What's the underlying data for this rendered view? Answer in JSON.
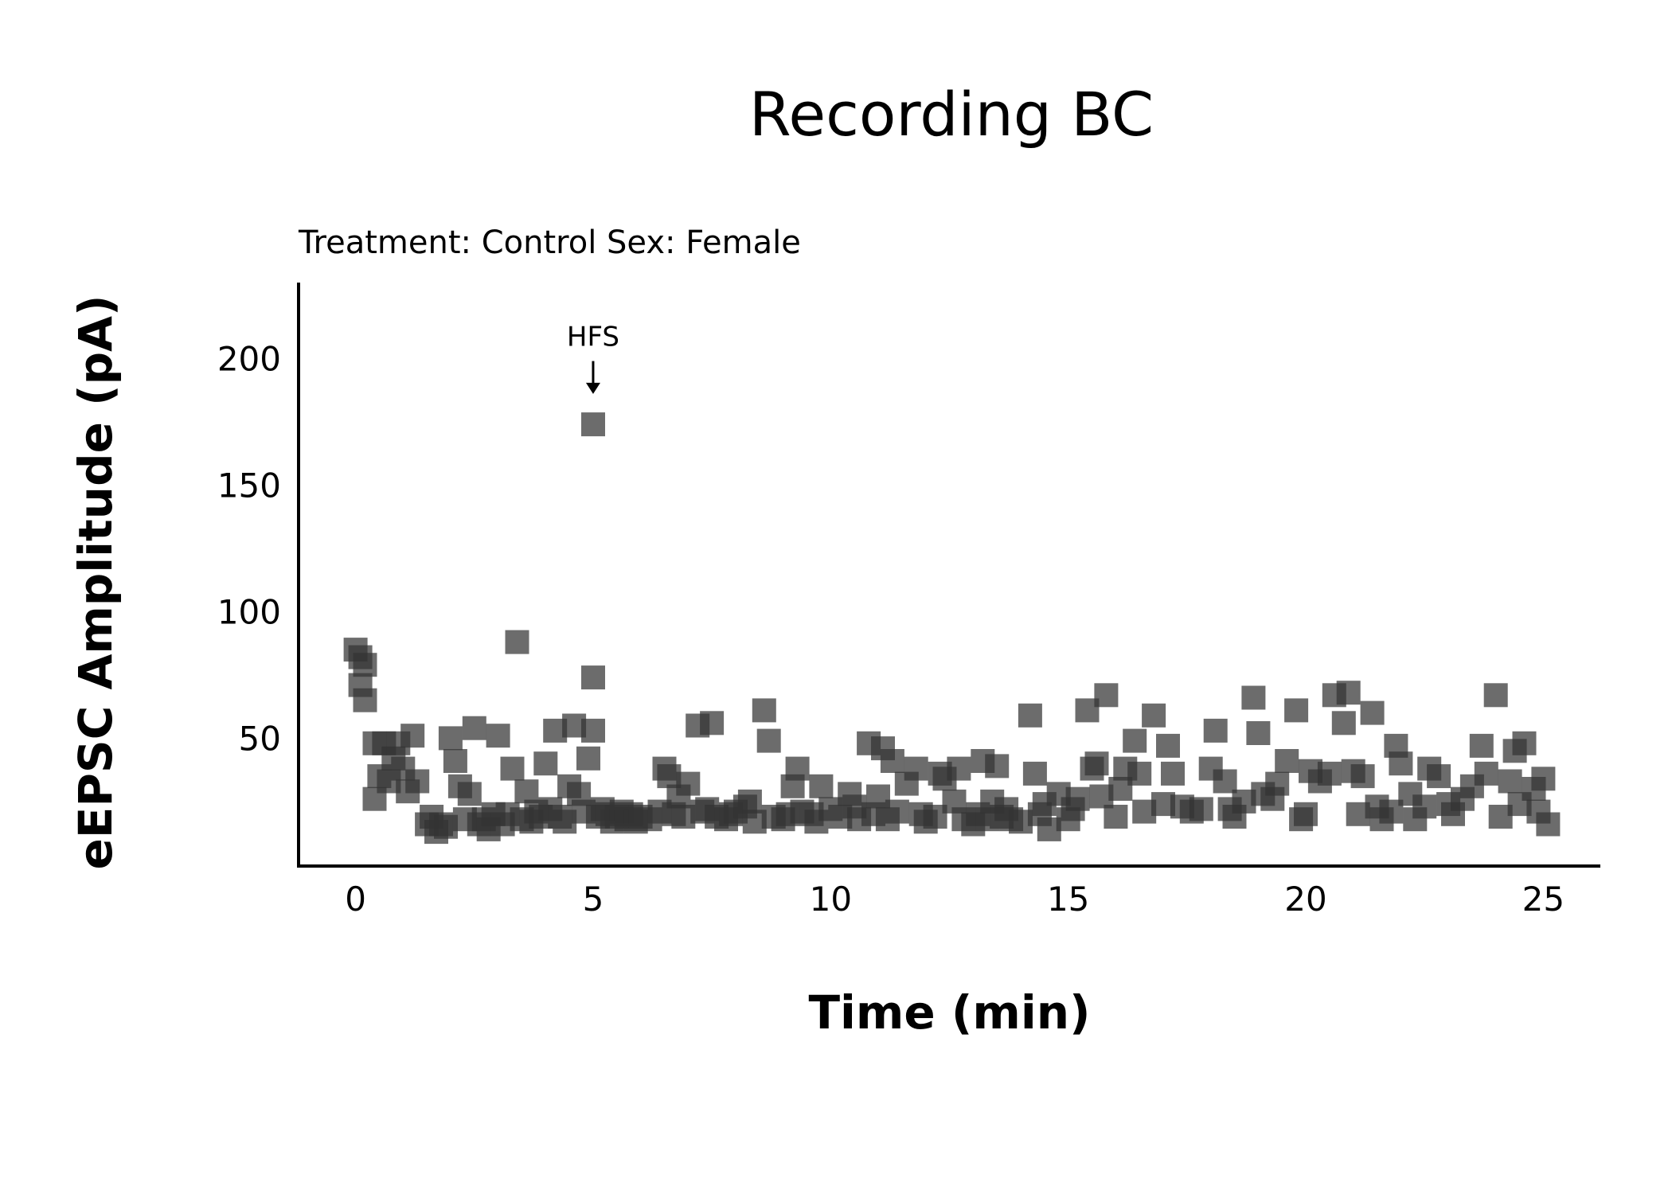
{
  "chart_data": {
    "type": "scatter",
    "title": "Recording BC",
    "subtitle": "Treatment: Control  Sex: Female",
    "xlabel": "Time (min)",
    "ylabel": "eEPSC Amplitude (pA)",
    "xlim": [
      -1.2,
      26.2
    ],
    "ylim": [
      -0.5,
      230
    ],
    "xticks": [
      0,
      5,
      10,
      15,
      20,
      25
    ],
    "yticks": [
      50,
      100,
      150,
      200
    ],
    "grid": false,
    "point_color": "#333333",
    "marker": "square",
    "annotation": {
      "text": "HFS",
      "x": 5.0,
      "y_text": 205,
      "y_arrow_start": 199,
      "y_arrow_end": 186
    },
    "points": [
      [
        0.0,
        85
      ],
      [
        0.1,
        82
      ],
      [
        0.1,
        71
      ],
      [
        0.2,
        79
      ],
      [
        0.2,
        65
      ],
      [
        0.4,
        48
      ],
      [
        0.4,
        26
      ],
      [
        0.5,
        35
      ],
      [
        0.6,
        48
      ],
      [
        0.7,
        33
      ],
      [
        0.8,
        42
      ],
      [
        0.9,
        48
      ],
      [
        1.0,
        38
      ],
      [
        1.1,
        29
      ],
      [
        1.2,
        51
      ],
      [
        1.3,
        33
      ],
      [
        1.5,
        16
      ],
      [
        1.6,
        19
      ],
      [
        1.7,
        13
      ],
      [
        1.8,
        16
      ],
      [
        1.9,
        15
      ],
      [
        2.0,
        50
      ],
      [
        2.1,
        41
      ],
      [
        2.2,
        31
      ],
      [
        2.3,
        18
      ],
      [
        2.4,
        28
      ],
      [
        2.5,
        54
      ],
      [
        2.6,
        16
      ],
      [
        2.7,
        18
      ],
      [
        2.8,
        14
      ],
      [
        2.9,
        20
      ],
      [
        3.0,
        51
      ],
      [
        3.1,
        16
      ],
      [
        3.2,
        20
      ],
      [
        3.3,
        38
      ],
      [
        3.4,
        88
      ],
      [
        3.5,
        18
      ],
      [
        3.6,
        29
      ],
      [
        3.7,
        17
      ],
      [
        3.8,
        21
      ],
      [
        3.9,
        19
      ],
      [
        4.0,
        40
      ],
      [
        4.1,
        22
      ],
      [
        4.2,
        53
      ],
      [
        4.3,
        19
      ],
      [
        4.4,
        17
      ],
      [
        4.5,
        31
      ],
      [
        4.6,
        55
      ],
      [
        4.7,
        28
      ],
      [
        4.8,
        21
      ],
      [
        4.9,
        42
      ],
      [
        5.0,
        53
      ],
      [
        5.0,
        74
      ],
      [
        5.0,
        174
      ],
      [
        5.1,
        19
      ],
      [
        5.2,
        22
      ],
      [
        5.3,
        20
      ],
      [
        5.4,
        17
      ],
      [
        5.5,
        19
      ],
      [
        5.6,
        21
      ],
      [
        5.7,
        18
      ],
      [
        5.8,
        20
      ],
      [
        5.9,
        17
      ],
      [
        6.0,
        19
      ],
      [
        6.2,
        18
      ],
      [
        6.4,
        21
      ],
      [
        6.5,
        38
      ],
      [
        6.6,
        35
      ],
      [
        6.7,
        20
      ],
      [
        6.8,
        27
      ],
      [
        6.9,
        19
      ],
      [
        7.0,
        32
      ],
      [
        7.2,
        55
      ],
      [
        7.3,
        21
      ],
      [
        7.4,
        22
      ],
      [
        7.5,
        56
      ],
      [
        7.6,
        19
      ],
      [
        7.8,
        18
      ],
      [
        7.9,
        20
      ],
      [
        8.0,
        21
      ],
      [
        8.2,
        23
      ],
      [
        8.3,
        25
      ],
      [
        8.4,
        17
      ],
      [
        8.6,
        61
      ],
      [
        8.7,
        49
      ],
      [
        8.8,
        19
      ],
      [
        9.0,
        18
      ],
      [
        9.1,
        20
      ],
      [
        9.2,
        31
      ],
      [
        9.3,
        38
      ],
      [
        9.4,
        21
      ],
      [
        9.6,
        20
      ],
      [
        9.7,
        17
      ],
      [
        9.8,
        31
      ],
      [
        10.0,
        22
      ],
      [
        10.2,
        19
      ],
      [
        10.4,
        28
      ],
      [
        10.5,
        23
      ],
      [
        10.6,
        18
      ],
      [
        10.8,
        48
      ],
      [
        10.9,
        20
      ],
      [
        11.0,
        27
      ],
      [
        11.1,
        46
      ],
      [
        11.2,
        18
      ],
      [
        11.3,
        41
      ],
      [
        11.4,
        21
      ],
      [
        11.6,
        32
      ],
      [
        11.8,
        38
      ],
      [
        11.9,
        20
      ],
      [
        12.0,
        17
      ],
      [
        12.2,
        19
      ],
      [
        12.3,
        36
      ],
      [
        12.4,
        34
      ],
      [
        12.6,
        25
      ],
      [
        12.7,
        38
      ],
      [
        12.8,
        18
      ],
      [
        13.0,
        16
      ],
      [
        13.1,
        20
      ],
      [
        13.2,
        41
      ],
      [
        13.3,
        18
      ],
      [
        13.4,
        25
      ],
      [
        13.5,
        39
      ],
      [
        13.6,
        19
      ],
      [
        13.7,
        22
      ],
      [
        13.8,
        18
      ],
      [
        14.0,
        17
      ],
      [
        14.2,
        59
      ],
      [
        14.3,
        36
      ],
      [
        14.4,
        20
      ],
      [
        14.5,
        24
      ],
      [
        14.6,
        14
      ],
      [
        14.8,
        28
      ],
      [
        15.0,
        18
      ],
      [
        15.1,
        22
      ],
      [
        15.2,
        26
      ],
      [
        15.4,
        61
      ],
      [
        15.5,
        38
      ],
      [
        15.6,
        40
      ],
      [
        15.7,
        27
      ],
      [
        15.8,
        67
      ],
      [
        16.0,
        19
      ],
      [
        16.1,
        30
      ],
      [
        16.2,
        38
      ],
      [
        16.4,
        49
      ],
      [
        16.5,
        36
      ],
      [
        16.6,
        21
      ],
      [
        16.8,
        59
      ],
      [
        17.0,
        24
      ],
      [
        17.1,
        47
      ],
      [
        17.2,
        36
      ],
      [
        17.4,
        23
      ],
      [
        17.6,
        21
      ],
      [
        17.8,
        22
      ],
      [
        18.0,
        38
      ],
      [
        18.1,
        53
      ],
      [
        18.3,
        33
      ],
      [
        18.4,
        22
      ],
      [
        18.5,
        19
      ],
      [
        18.7,
        25
      ],
      [
        18.9,
        66
      ],
      [
        19.0,
        52
      ],
      [
        19.1,
        28
      ],
      [
        19.3,
        26
      ],
      [
        19.4,
        32
      ],
      [
        19.6,
        41
      ],
      [
        19.8,
        61
      ],
      [
        19.9,
        18
      ],
      [
        20.0,
        20
      ],
      [
        20.1,
        37
      ],
      [
        20.3,
        33
      ],
      [
        20.5,
        36
      ],
      [
        20.6,
        67
      ],
      [
        20.8,
        56
      ],
      [
        20.9,
        68
      ],
      [
        21.0,
        37
      ],
      [
        21.1,
        20
      ],
      [
        21.2,
        35
      ],
      [
        21.4,
        60
      ],
      [
        21.5,
        23
      ],
      [
        21.6,
        18
      ],
      [
        21.8,
        21
      ],
      [
        21.9,
        47
      ],
      [
        22.0,
        40
      ],
      [
        22.2,
        28
      ],
      [
        22.3,
        18
      ],
      [
        22.5,
        23
      ],
      [
        22.6,
        38
      ],
      [
        22.8,
        35
      ],
      [
        23.0,
        24
      ],
      [
        23.1,
        20
      ],
      [
        23.3,
        26
      ],
      [
        23.5,
        31
      ],
      [
        23.7,
        47
      ],
      [
        23.8,
        36
      ],
      [
        24.0,
        67
      ],
      [
        24.1,
        19
      ],
      [
        24.3,
        33
      ],
      [
        24.4,
        45
      ],
      [
        24.5,
        24
      ],
      [
        24.6,
        48
      ],
      [
        24.8,
        30
      ],
      [
        24.9,
        21
      ],
      [
        25.0,
        34
      ],
      [
        25.1,
        16
      ]
    ]
  }
}
